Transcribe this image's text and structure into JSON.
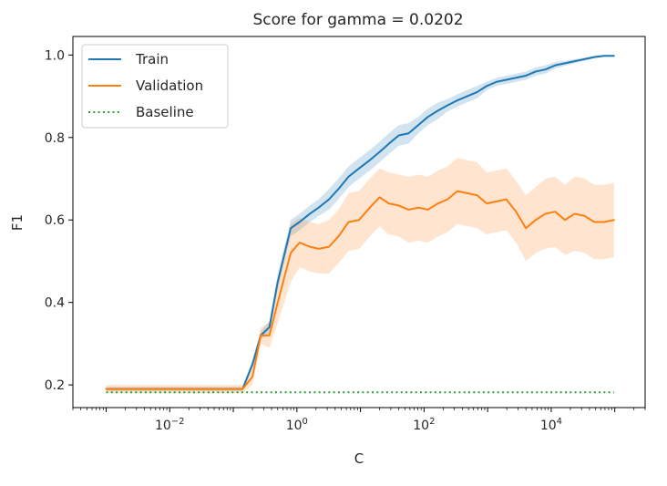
{
  "chart_data": {
    "type": "line",
    "title": "Score for gamma = 0.0202",
    "xlabel": "C",
    "ylabel": "F1",
    "x_scale": "log",
    "xlim": [
      0.0003,
      300000
    ],
    "ylim": [
      0.145,
      1.045
    ],
    "x_ticks": [
      {
        "value": 0.01,
        "base": "10",
        "exp": "−2"
      },
      {
        "value": 1,
        "base": "10",
        "exp": "0"
      },
      {
        "value": 100,
        "base": "10",
        "exp": "2"
      },
      {
        "value": 10000,
        "base": "10",
        "exp": "4"
      }
    ],
    "y_ticks": [
      {
        "value": 0.2,
        "label": "0.2"
      },
      {
        "value": 0.4,
        "label": "0.4"
      },
      {
        "value": 0.6,
        "label": "0.6"
      },
      {
        "value": 0.8,
        "label": "0.8"
      },
      {
        "value": 1.0,
        "label": "1.0"
      }
    ],
    "legend_position": "top-left",
    "series": [
      {
        "name": "Train",
        "color": "#1f77b4",
        "style": "solid",
        "band": true,
        "points": [
          [
            0.001,
            0.19
          ],
          [
            0.002,
            0.19
          ],
          [
            0.005,
            0.19
          ],
          [
            0.01,
            0.19
          ],
          [
            0.02,
            0.19
          ],
          [
            0.05,
            0.19
          ],
          [
            0.1,
            0.19
          ],
          [
            0.14,
            0.19
          ],
          [
            0.2,
            0.25
          ],
          [
            0.27,
            0.32
          ],
          [
            0.37,
            0.34
          ],
          [
            0.5,
            0.45
          ],
          [
            0.8,
            0.58
          ],
          [
            1.1,
            0.595
          ],
          [
            1.6,
            0.615
          ],
          [
            2.2,
            0.63
          ],
          [
            3.2,
            0.65
          ],
          [
            4.5,
            0.675
          ],
          [
            6.5,
            0.705
          ],
          [
            9.5,
            0.725
          ],
          [
            14,
            0.745
          ],
          [
            20,
            0.765
          ],
          [
            28,
            0.785
          ],
          [
            40,
            0.805
          ],
          [
            57,
            0.81
          ],
          [
            81,
            0.83
          ],
          [
            115,
            0.85
          ],
          [
            165,
            0.865
          ],
          [
            234,
            0.878
          ],
          [
            334,
            0.89
          ],
          [
            476,
            0.9
          ],
          [
            680,
            0.91
          ],
          [
            970,
            0.925
          ],
          [
            1380,
            0.935
          ],
          [
            1970,
            0.94
          ],
          [
            2800,
            0.945
          ],
          [
            4000,
            0.95
          ],
          [
            5700,
            0.96
          ],
          [
            8100,
            0.965
          ],
          [
            11500,
            0.975
          ],
          [
            16500,
            0.98
          ],
          [
            23400,
            0.985
          ],
          [
            33400,
            0.99
          ],
          [
            47600,
            0.995
          ],
          [
            68000,
            0.998
          ],
          [
            97000,
            0.998
          ]
        ],
        "band_halfwidth": [
          0.005,
          0.005,
          0.005,
          0.005,
          0.005,
          0.005,
          0.005,
          0.005,
          0.01,
          0.01,
          0.015,
          0.02,
          0.02,
          0.02,
          0.02,
          0.02,
          0.025,
          0.025,
          0.025,
          0.025,
          0.025,
          0.025,
          0.025,
          0.025,
          0.025,
          0.02,
          0.02,
          0.02,
          0.015,
          0.015,
          0.015,
          0.015,
          0.01,
          0.01,
          0.01,
          0.01,
          0.01,
          0.01,
          0.01,
          0.008,
          0.006,
          0.005,
          0.004,
          0.003,
          0.002,
          0.002
        ]
      },
      {
        "name": "Validation",
        "color": "#ff7f0e",
        "style": "solid",
        "band": true,
        "points": [
          [
            0.001,
            0.19
          ],
          [
            0.002,
            0.19
          ],
          [
            0.005,
            0.19
          ],
          [
            0.01,
            0.19
          ],
          [
            0.02,
            0.19
          ],
          [
            0.05,
            0.19
          ],
          [
            0.1,
            0.19
          ],
          [
            0.14,
            0.19
          ],
          [
            0.2,
            0.22
          ],
          [
            0.27,
            0.32
          ],
          [
            0.37,
            0.32
          ],
          [
            0.5,
            0.4
          ],
          [
            0.8,
            0.52
          ],
          [
            1.1,
            0.545
          ],
          [
            1.6,
            0.535
          ],
          [
            2.2,
            0.53
          ],
          [
            3.2,
            0.535
          ],
          [
            4.5,
            0.56
          ],
          [
            6.5,
            0.595
          ],
          [
            9.5,
            0.6
          ],
          [
            14,
            0.63
          ],
          [
            20,
            0.655
          ],
          [
            28,
            0.64
          ],
          [
            40,
            0.635
          ],
          [
            57,
            0.625
          ],
          [
            81,
            0.63
          ],
          [
            115,
            0.625
          ],
          [
            165,
            0.64
          ],
          [
            234,
            0.65
          ],
          [
            334,
            0.67
          ],
          [
            476,
            0.665
          ],
          [
            680,
            0.66
          ],
          [
            970,
            0.64
          ],
          [
            1380,
            0.645
          ],
          [
            1970,
            0.65
          ],
          [
            2800,
            0.62
          ],
          [
            4000,
            0.58
          ],
          [
            5700,
            0.6
          ],
          [
            8100,
            0.615
          ],
          [
            11500,
            0.62
          ],
          [
            16500,
            0.6
          ],
          [
            23400,
            0.615
          ],
          [
            33400,
            0.61
          ],
          [
            47600,
            0.595
          ],
          [
            68000,
            0.595
          ],
          [
            97000,
            0.6
          ]
        ],
        "band_halfwidth": [
          0.01,
          0.01,
          0.01,
          0.01,
          0.01,
          0.01,
          0.01,
          0.01,
          0.02,
          0.02,
          0.03,
          0.05,
          0.07,
          0.06,
          0.06,
          0.06,
          0.065,
          0.065,
          0.07,
          0.07,
          0.07,
          0.07,
          0.075,
          0.075,
          0.08,
          0.08,
          0.08,
          0.08,
          0.08,
          0.08,
          0.08,
          0.08,
          0.075,
          0.075,
          0.075,
          0.075,
          0.08,
          0.08,
          0.085,
          0.085,
          0.085,
          0.09,
          0.09,
          0.09,
          0.09,
          0.09
        ]
      },
      {
        "name": "Baseline",
        "color": "#2ca02c",
        "style": "dotted",
        "band": false,
        "points": [
          [
            0.001,
            0.182
          ],
          [
            97000,
            0.182
          ]
        ],
        "band_halfwidth": []
      }
    ]
  }
}
